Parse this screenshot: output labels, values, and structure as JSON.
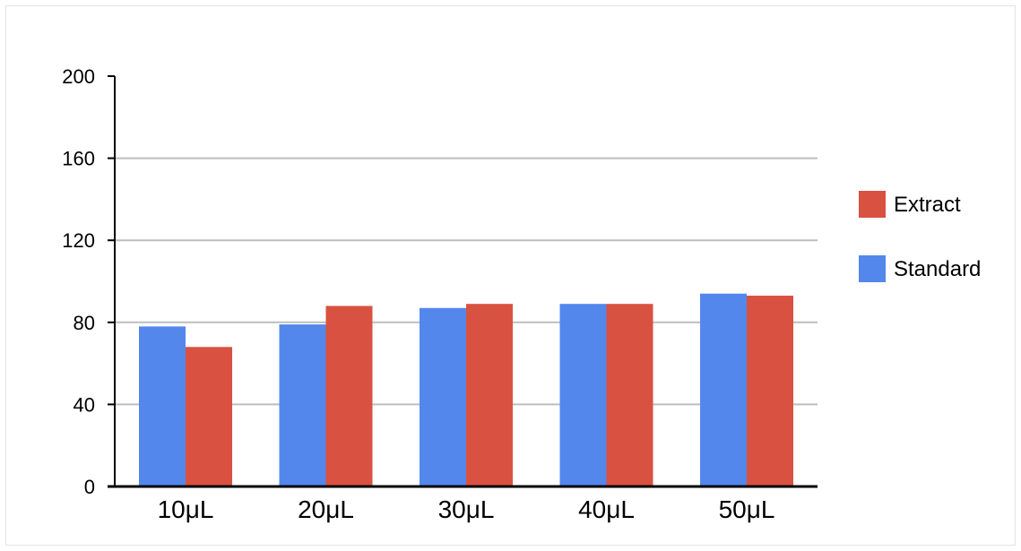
{
  "chart_data": {
    "type": "bar",
    "title": "",
    "xlabel": "",
    "ylabel": "",
    "categories": [
      "10μL",
      "20μL",
      "30μL",
      "40μL",
      "50μL"
    ],
    "series": [
      {
        "name": "Standard",
        "color": "#5487ec",
        "values": [
          78,
          79,
          87,
          89,
          94
        ]
      },
      {
        "name": "Extract",
        "color": "#d95140",
        "values": [
          68,
          88,
          89,
          89,
          93
        ]
      }
    ],
    "ylim": [
      0,
      200
    ],
    "yticks": [
      "0",
      "40",
      "80",
      "120",
      "160",
      "200"
    ],
    "grid": true,
    "legend_position": "right",
    "legend_order": [
      "Extract",
      "Standard"
    ]
  }
}
